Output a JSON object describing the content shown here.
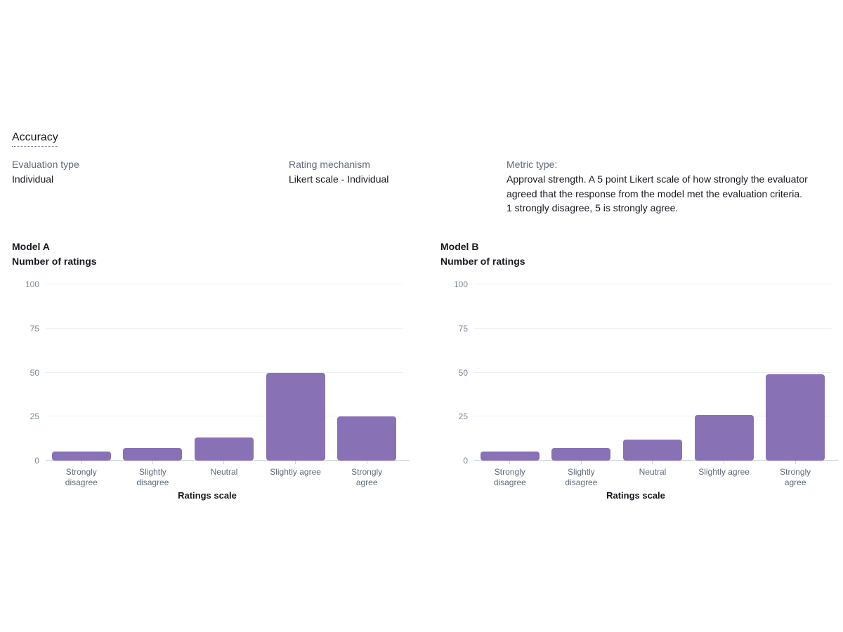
{
  "header": {
    "title": "Accuracy"
  },
  "meta": {
    "evaluation_type": {
      "label": "Evaluation type",
      "value": "Individual"
    },
    "rating_mechanism": {
      "label": "Rating mechanism",
      "value": "Likert scale - Individual"
    },
    "metric_type": {
      "label": "Metric type:",
      "description": "Approval strength. A 5 point Likert scale of how strongly the evaluator agreed that the response from the model met the evaluation criteria.\n1 strongly disagree, 5 is strongly agree."
    }
  },
  "colors": {
    "bar": "#8971b5",
    "grid": "#edeff2",
    "axis": "#ced4da"
  },
  "chart_data": [
    {
      "type": "bar",
      "title": "Model A",
      "ylabel": "Number of ratings",
      "xlabel": "Ratings scale",
      "categories": [
        "Strongly disagree",
        "Slightly disagree",
        "Neutral",
        "Slightly agree",
        "Strongly agree"
      ],
      "values": [
        5,
        7,
        13,
        50,
        25
      ],
      "ylim": [
        0,
        100
      ],
      "yticks": [
        0,
        25,
        50,
        75,
        100
      ],
      "grid": true,
      "legend": "none",
      "bar_color": "#8971b5"
    },
    {
      "type": "bar",
      "title": "Model B",
      "ylabel": "Number of ratings",
      "xlabel": "Ratings scale",
      "categories": [
        "Strongly disagree",
        "Slightly disagree",
        "Neutral",
        "Slightly agree",
        "Strongly agree"
      ],
      "values": [
        5,
        7,
        12,
        26,
        49
      ],
      "ylim": [
        0,
        100
      ],
      "yticks": [
        0,
        25,
        50,
        75,
        100
      ],
      "grid": true,
      "legend": "none",
      "bar_color": "#8971b5"
    }
  ]
}
